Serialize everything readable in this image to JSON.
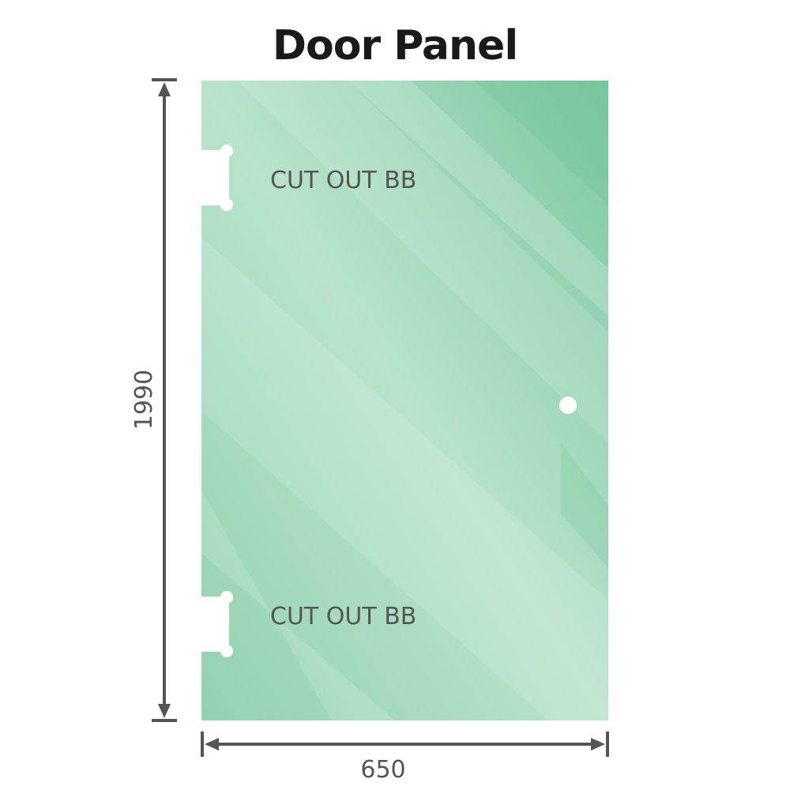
{
  "title": "Door Panel",
  "panel": {
    "glass_color": "#86cda7",
    "glass_highlight": "#bfe6d1",
    "cutouts": [
      {
        "label": "CUT OUT BB"
      },
      {
        "label": "CUT OUT BB"
      }
    ]
  },
  "dimensions": {
    "height": "1990",
    "width": "650",
    "line_color": "#555555"
  }
}
